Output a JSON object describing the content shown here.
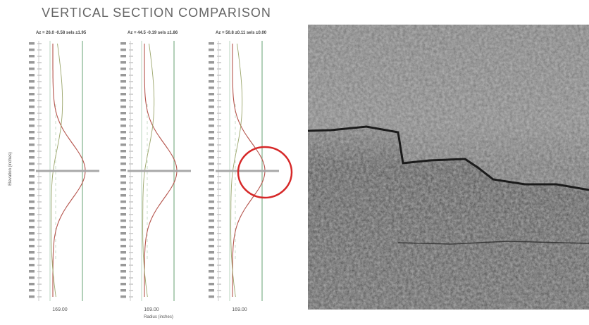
{
  "title": "VERTICAL SECTION COMPARISON",
  "y_axis_label": "Elevation (inches)",
  "x_axis_label": "Radius (inches)",
  "panels": [
    {
      "header": "Az = 26.0  -0.58 sels ±1.95",
      "bottom_label": "169.00"
    },
    {
      "header": "Az = 44.5  -0.19 sels ±1.86",
      "bottom_label": "169.00"
    },
    {
      "header": "Az = 50.8  ±0.11 sels ±0.00",
      "bottom_label": "169.00"
    }
  ]
}
